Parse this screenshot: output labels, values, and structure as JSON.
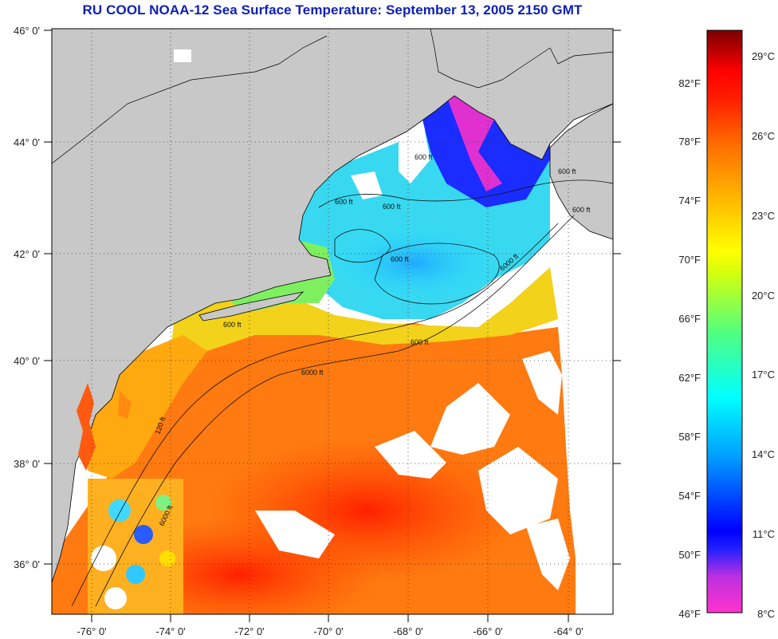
{
  "title": "RU COOL  NOAA-12  Sea Surface Temperature:  September 13, 2005 2150 GMT",
  "latitude_labels": [
    "46° 0'",
    "44° 0'",
    "42° 0'",
    "40° 0'",
    "38° 0'",
    "36° 0'"
  ],
  "longitude_labels": [
    "-76° 0'",
    "-74° 0'",
    "-72° 0'",
    "-70° 0'",
    "-68° 0'",
    "-66° 0'",
    "-64° 0'"
  ],
  "contour_labels": [
    "600 ft",
    "600 ft",
    "600 ft",
    "600 ft",
    "6000 ft",
    "6000 ft",
    "600 ft",
    "600 ft",
    "600 ft",
    "600 ft",
    "120 ft",
    "6000 ft"
  ],
  "colorbar": {
    "fahrenheit_labels": [
      "82°F",
      "78°F",
      "74°F",
      "70°F",
      "66°F",
      "62°F",
      "58°F",
      "54°F",
      "50°F",
      "46°F"
    ],
    "celsius_labels": [
      "29°C",
      "26°C",
      "23°C",
      "20°C",
      "17°C",
      "14°C",
      "11°C",
      "8°C"
    ],
    "range_f": [
      46,
      86
    ],
    "stops": [
      "#ff33cc",
      "#8a2be2",
      "#0000ff",
      "#00a0ff",
      "#00ffff",
      "#40ff80",
      "#c0ff20",
      "#ffff00",
      "#ffc000",
      "#ff8000",
      "#ff3000",
      "#ff0000",
      "#7a0000"
    ]
  },
  "colors": {
    "land": "#c8c8c8",
    "cloud": "#ffffff",
    "title": "#0c1fb8"
  }
}
